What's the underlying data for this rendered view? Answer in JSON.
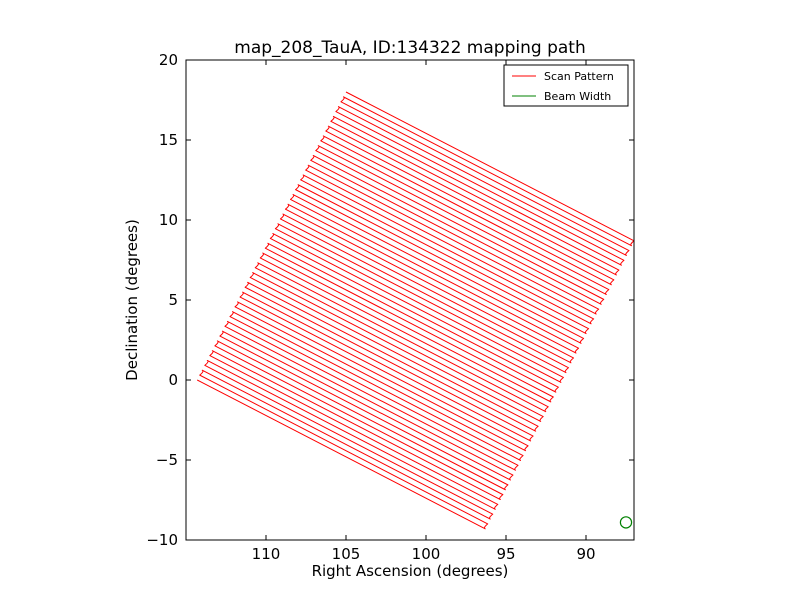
{
  "chart_data": {
    "type": "line",
    "title": "map_208_TauA, ID:134322 mapping path",
    "xlabel": "Right Ascension (degrees)",
    "ylabel": "Declination (degrees)",
    "xlim": [
      115,
      87
    ],
    "ylim": [
      -10,
      20
    ],
    "x_ticks": [
      110,
      105,
      100,
      95,
      90
    ],
    "y_ticks": [
      -10,
      -5,
      0,
      5,
      10,
      15,
      20
    ],
    "x_tick_labels": [
      "110",
      "105",
      "100",
      "95",
      "90"
    ],
    "y_tick_labels": [
      "−10",
      "−5",
      "0",
      "5",
      "10",
      "15",
      "20"
    ],
    "x_inverted": true,
    "legend_position": "top-right",
    "series": [
      {
        "name": "Scan Pattern",
        "color": "#ff0000",
        "pattern": "boustrophedon raster",
        "corners": {
          "start": [
            114.3,
            0.0
          ],
          "top": [
            105.0,
            18.0
          ],
          "right": [
            87.0,
            8.7
          ],
          "bottom": [
            96.3,
            -9.3
          ]
        },
        "num_legs": 60
      },
      {
        "name": "Beam Width",
        "color": "#008000",
        "marker": "circle",
        "center": [
          87.5,
          -8.9
        ],
        "radius_deg": 0.35
      }
    ]
  }
}
